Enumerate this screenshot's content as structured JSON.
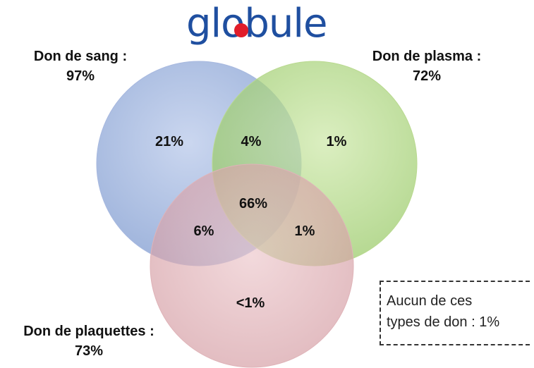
{
  "logo": {
    "text": "globule",
    "dot_color": "#e11d2a",
    "text_color": "#1f4fa0"
  },
  "sets": {
    "blood": {
      "name": "Don de sang :",
      "value": "97%",
      "color": "#8ea6d6"
    },
    "plasma": {
      "name": "Don de plasma :",
      "value": "72%",
      "color": "#a9d47a"
    },
    "platelets": {
      "name": "Don de plaquettes :",
      "value": "73%",
      "color": "#dca7ad"
    }
  },
  "regions": {
    "blood_only": "21%",
    "blood_plasma": "4%",
    "plasma_only": "1%",
    "all_three": "66%",
    "blood_platelets": "6%",
    "plasma_platelets": "1%",
    "platelets_only": "<1%"
  },
  "none_box": {
    "line1": "Aucun de ces",
    "line2": "types de don : 1%"
  }
}
